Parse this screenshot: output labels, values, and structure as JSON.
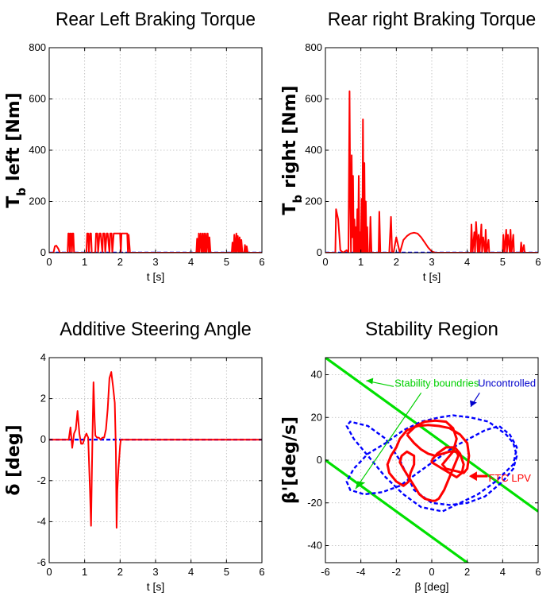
{
  "chart_data": [
    {
      "id": "p1",
      "type": "line",
      "title": "Rear Left Braking Torque",
      "xlabel": "t [s]",
      "ylabel_main": "T",
      "ylabel_sub": "b",
      "ylabel_rest": "left [Nm]",
      "xlim": [
        0,
        6
      ],
      "ylim": [
        0,
        800
      ],
      "xticks": [
        0,
        1,
        2,
        3,
        4,
        5,
        6
      ],
      "yticks": [
        0,
        200,
        400,
        600,
        800
      ],
      "grid": true,
      "colors": {
        "controlled": "#ff0000",
        "uncontrolled": "#0000ff"
      },
      "series": [
        {
          "style": "dashed-blue",
          "x": [
            0,
            6
          ],
          "y": [
            0,
            0
          ]
        },
        {
          "style": "solid-red",
          "x": [
            0,
            0.12,
            0.16,
            0.2,
            0.26,
            0.3,
            0.52,
            0.54,
            0.56,
            0.58,
            0.6,
            0.62,
            0.64,
            0.66,
            0.68,
            0.7,
            1.05,
            1.07,
            1.1,
            1.12,
            1.15,
            1.18,
            1.2,
            1.3,
            1.32,
            1.36,
            1.38,
            1.42,
            1.45,
            1.5,
            1.52,
            1.56,
            1.58,
            1.62,
            1.65,
            1.7,
            1.72,
            1.76,
            1.78,
            1.82,
            1.85,
            2.0,
            2.02,
            2.04,
            2.06,
            2.1,
            2.2,
            2.22,
            2.24,
            2.28,
            4.15,
            4.17,
            4.2,
            4.22,
            4.24,
            4.27,
            4.3,
            4.32,
            4.35,
            4.37,
            4.4,
            4.42,
            4.44,
            4.47,
            4.5,
            4.52,
            4.55,
            5.15,
            5.17,
            5.2,
            5.22,
            5.25,
            5.28,
            5.3,
            5.32,
            5.35,
            5.37,
            5.4,
            5.42,
            5.45,
            5.5,
            5.52,
            5.55,
            5.57,
            5.6,
            6
          ],
          "y": [
            0,
            0,
            25,
            28,
            15,
            0,
            0,
            75,
            75,
            0,
            75,
            75,
            0,
            75,
            75,
            0,
            0,
            75,
            75,
            0,
            75,
            75,
            0,
            0,
            75,
            75,
            0,
            75,
            75,
            0,
            75,
            75,
            0,
            75,
            75,
            0,
            75,
            75,
            0,
            75,
            75,
            75,
            0,
            75,
            75,
            75,
            75,
            0,
            70,
            0,
            0,
            55,
            0,
            75,
            0,
            75,
            0,
            75,
            0,
            75,
            0,
            75,
            0,
            75,
            0,
            60,
            0,
            0,
            40,
            0,
            70,
            0,
            75,
            0,
            65,
            0,
            60,
            0,
            50,
            0,
            0,
            30,
            0,
            25,
            0,
            0
          ]
        }
      ]
    },
    {
      "id": "p2",
      "type": "line",
      "title": "Rear right Braking Torque",
      "xlabel": "t [s]",
      "ylabel_main": "T",
      "ylabel_sub": "b",
      "ylabel_rest": "right [Nm]",
      "xlim": [
        0,
        6
      ],
      "ylim": [
        0,
        800
      ],
      "xticks": [
        0,
        1,
        2,
        3,
        4,
        5,
        6
      ],
      "yticks": [
        0,
        200,
        400,
        600,
        800
      ],
      "grid": true,
      "colors": {
        "controlled": "#ff0000",
        "uncontrolled": "#0000ff"
      },
      "series": [
        {
          "style": "dashed-blue",
          "x": [
            0,
            6
          ],
          "y": [
            0,
            0
          ]
        },
        {
          "style": "solid-red",
          "x": [
            0,
            0.28,
            0.3,
            0.33,
            0.36,
            0.42,
            0.5,
            0.6,
            0.65,
            0.68,
            0.7,
            0.72,
            0.74,
            0.76,
            0.78,
            0.8,
            0.82,
            0.84,
            0.86,
            0.88,
            0.9,
            0.92,
            0.94,
            0.96,
            0.98,
            1.0,
            1.02,
            1.04,
            1.06,
            1.08,
            1.1,
            1.12,
            1.14,
            1.16,
            1.18,
            1.2,
            1.25,
            1.27,
            1.3,
            1.5,
            1.52,
            1.55,
            1.8,
            1.85,
            1.88,
            1.92,
            2.0,
            2.1,
            2.2,
            2.3,
            2.4,
            2.5,
            2.6,
            2.7,
            2.8,
            2.9,
            3.0,
            3.1,
            3.2,
            3.4,
            4.1,
            4.12,
            4.15,
            4.2,
            4.22,
            4.25,
            4.3,
            4.32,
            4.35,
            4.4,
            4.42,
            4.45,
            4.5,
            4.52,
            4.55,
            4.6,
            4.62,
            4.65,
            5.0,
            5.02,
            5.05,
            5.1,
            5.12,
            5.15,
            5.2,
            5.22,
            5.25,
            5.3,
            5.32,
            5.35,
            5.5,
            5.52,
            5.55,
            5.6,
            5.62,
            5.65,
            6
          ],
          "y": [
            0,
            0,
            170,
            150,
            130,
            10,
            0,
            10,
            0,
            630,
            200,
            0,
            380,
            60,
            300,
            0,
            130,
            0,
            100,
            0,
            170,
            0,
            300,
            0,
            80,
            0,
            210,
            0,
            520,
            0,
            350,
            0,
            200,
            0,
            100,
            0,
            0,
            140,
            0,
            0,
            160,
            0,
            0,
            140,
            0,
            0,
            60,
            0,
            50,
            65,
            75,
            78,
            75,
            60,
            40,
            20,
            5,
            0,
            0,
            0,
            0,
            110,
            0,
            80,
            0,
            120,
            0,
            70,
            0,
            110,
            0,
            60,
            0,
            90,
            0,
            50,
            0,
            0,
            0,
            70,
            0,
            90,
            0,
            70,
            0,
            90,
            0,
            70,
            0,
            0,
            0,
            40,
            0,
            30,
            0,
            0,
            0
          ]
        }
      ]
    },
    {
      "id": "p3",
      "type": "line",
      "title": "Additive Steering Angle",
      "xlabel": "t [s]",
      "ylabel_main": "δ [deg]",
      "ylabel_sub": "",
      "ylabel_rest": "",
      "xlim": [
        0,
        6
      ],
      "ylim": [
        -6,
        4
      ],
      "xticks": [
        0,
        1,
        2,
        3,
        4,
        5,
        6
      ],
      "yticks": [
        -6,
        -4,
        -2,
        0,
        2,
        4
      ],
      "grid": true,
      "colors": {
        "controlled": "#ff0000",
        "uncontrolled": "#0000ff"
      },
      "series": [
        {
          "style": "dashed-blue",
          "x": [
            0,
            6
          ],
          "y": [
            0,
            0
          ]
        },
        {
          "style": "solid-red",
          "x": [
            0,
            0.55,
            0.6,
            0.65,
            0.7,
            0.75,
            0.8,
            0.85,
            0.9,
            0.95,
            1.0,
            1.05,
            1.1,
            1.15,
            1.18,
            1.2,
            1.22,
            1.25,
            1.28,
            1.3,
            1.35,
            1.4,
            1.45,
            1.5,
            1.55,
            1.6,
            1.65,
            1.7,
            1.75,
            1.8,
            1.85,
            1.88,
            1.9,
            1.92,
            1.95,
            1.98,
            2.0,
            2.02,
            2.05,
            2.1,
            2.15,
            2.2,
            6
          ],
          "y": [
            0,
            0,
            0.6,
            -0.4,
            0.3,
            0.5,
            1.4,
            0.3,
            -0.2,
            -0.2,
            0.1,
            0.3,
            0.1,
            -2.5,
            -4.2,
            -2.0,
            0.1,
            2.8,
            1.0,
            0.2,
            0.1,
            0.1,
            0.0,
            0.1,
            0.1,
            0.5,
            1.5,
            3.0,
            3.3,
            2.6,
            1.8,
            -0.5,
            -4.3,
            -2.5,
            -1.5,
            -0.8,
            -0.3,
            0.0,
            0.0,
            0.0,
            0.0,
            0.0,
            0.0
          ]
        }
      ]
    },
    {
      "id": "p4",
      "type": "line",
      "title": "Stability Region",
      "xlabel": "β [deg]",
      "ylabel_main": "β'[deg/s]",
      "ylabel_sub": "",
      "ylabel_rest": "",
      "xlim": [
        -6,
        6
      ],
      "ylim": [
        -48,
        48
      ],
      "xticks": [
        -6,
        -4,
        -2,
        0,
        2,
        4,
        6
      ],
      "yticks": [
        -40,
        -20,
        0,
        20,
        40
      ],
      "grid": true,
      "colors": {
        "controlled": "#ff0000",
        "uncontrolled": "#0000ff",
        "boundary": "#00e000"
      },
      "annotations": {
        "boundary": "Stability boundries",
        "uncontrolled": "Uncontrolled",
        "ftc": "FTC LPV"
      },
      "series": [
        {
          "style": "boundary",
          "x": [
            -6,
            6
          ],
          "y": [
            48,
            -24
          ]
        },
        {
          "style": "boundary",
          "x": [
            -6,
            6
          ],
          "y": [
            0,
            -72
          ]
        },
        {
          "style": "dashed-blue",
          "x": [
            -1.8,
            -1.0,
            0.0,
            1.0,
            2.0,
            3.0,
            4.0,
            4.6,
            4.8,
            4.6,
            4.2,
            3.2,
            2.2,
            1.2,
            0.4,
            -0.6,
            -1.6,
            -2.6,
            -3.6,
            -4.4,
            -4.8,
            -4.6,
            -3.8,
            -2.8,
            -1.8,
            -0.8,
            0.2,
            1.2,
            2.1,
            3.0,
            3.8,
            4.4,
            4.8,
            4.6,
            3.6,
            2.6,
            1.6,
            0.6,
            -0.6,
            -1.6,
            -2.6,
            -3.6,
            -4.4,
            -4.8,
            -4.6,
            -3.6,
            -2.6,
            -1.8
          ],
          "y": [
            0,
            -14,
            -20,
            -21,
            -20,
            -17,
            -10,
            -4,
            2,
            8,
            12,
            18,
            20,
            21,
            20,
            18,
            14,
            8,
            3,
            -4,
            -10,
            -14,
            -16,
            -15,
            -12,
            -6,
            0,
            6,
            10,
            14,
            16,
            12,
            6,
            -2,
            -10,
            -16,
            -20,
            -24,
            -22,
            -16,
            -8,
            2,
            10,
            16,
            18,
            16,
            10,
            0
          ]
        },
        {
          "style": "solid-red",
          "x": [
            -1.4,
            -0.9,
            -0.4,
            0.2,
            0.8,
            1.2,
            1.4,
            1.2,
            0.8,
            0.6,
            0.8,
            1.3,
            1.8,
            2.0,
            2.1,
            2.0,
            1.6,
            1.0,
            0.4,
            -0.2,
            -0.8,
            -1.4,
            -1.8,
            -2.0,
            -2.3,
            -2.5,
            -2.4,
            -2.0,
            -1.6,
            -1.3,
            -1.2,
            -1.0,
            -1.0,
            -1.4,
            -1.7,
            -1.8,
            -1.6,
            -1.3,
            -1.0,
            -0.7,
            -0.4,
            0.0,
            0.2,
            0.4,
            0.7,
            1.0,
            1.3,
            1.5,
            1.4,
            1.0,
            0.6,
            0.2,
            -0.2,
            -0.6,
            -1.0,
            -1.4
          ],
          "y": [
            12,
            16,
            18,
            18.5,
            18,
            15,
            10,
            4,
            0,
            -2,
            -4,
            -5,
            -6,
            -4,
            2,
            8,
            12,
            15,
            16,
            16.5,
            16,
            14,
            10,
            6,
            2,
            -2,
            -6,
            -10,
            -12,
            -10,
            -6,
            -2,
            2,
            4,
            2,
            -1,
            -4,
            -8,
            -12,
            -16,
            -18,
            -19,
            -19,
            -18,
            -14,
            -8,
            -2,
            2,
            4,
            4,
            3,
            2,
            3,
            5,
            8,
            12
          ]
        },
        {
          "style": "solid-red",
          "x": [
            0.0,
            0.3,
            0.8,
            1.3,
            1.6,
            1.8,
            1.7,
            1.4,
            1.0,
            0.6,
            0.2,
            0.0,
            0.0
          ],
          "y": [
            0,
            3,
            6,
            6,
            3,
            -2,
            -6,
            -8,
            -6,
            -4,
            -2,
            -1,
            0
          ]
        }
      ]
    }
  ]
}
